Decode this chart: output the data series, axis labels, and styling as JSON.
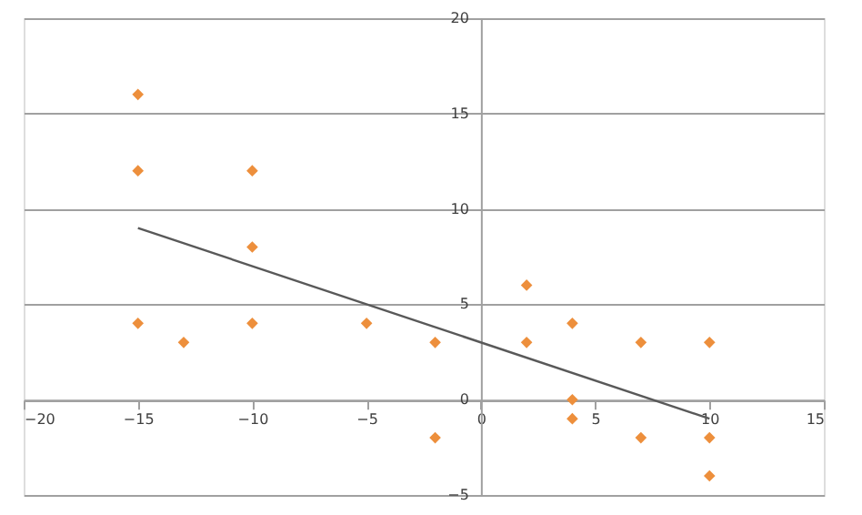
{
  "chart_data": {
    "type": "scatter",
    "series": [
      {
        "color": "#ed8f3c",
        "marker": "diamond",
        "x": [
          -15,
          -15,
          -10,
          -10,
          -15,
          -13,
          -10,
          -5,
          -2,
          -2,
          2,
          2,
          4,
          4,
          4,
          7,
          7,
          10,
          10,
          10
        ],
        "values": [
          16,
          12,
          12,
          8,
          4,
          3,
          4,
          4,
          3,
          -2,
          6,
          3,
          4,
          0,
          -1,
          3,
          -2,
          3,
          -2,
          -4
        ]
      },
      {
        "type": "line",
        "color": "#595959",
        "line_style": "solid",
        "x": [
          -15,
          10
        ],
        "values": [
          9,
          -1
        ]
      }
    ],
    "xlim": [
      -20,
      15
    ],
    "xticks": [
      -20,
      -15,
      -10,
      -5,
      0,
      5,
      10,
      15
    ],
    "ylim": [
      -5,
      20
    ],
    "yticks": [
      -5,
      0,
      5,
      10,
      15,
      20
    ],
    "grid": "y",
    "legend": false
  }
}
